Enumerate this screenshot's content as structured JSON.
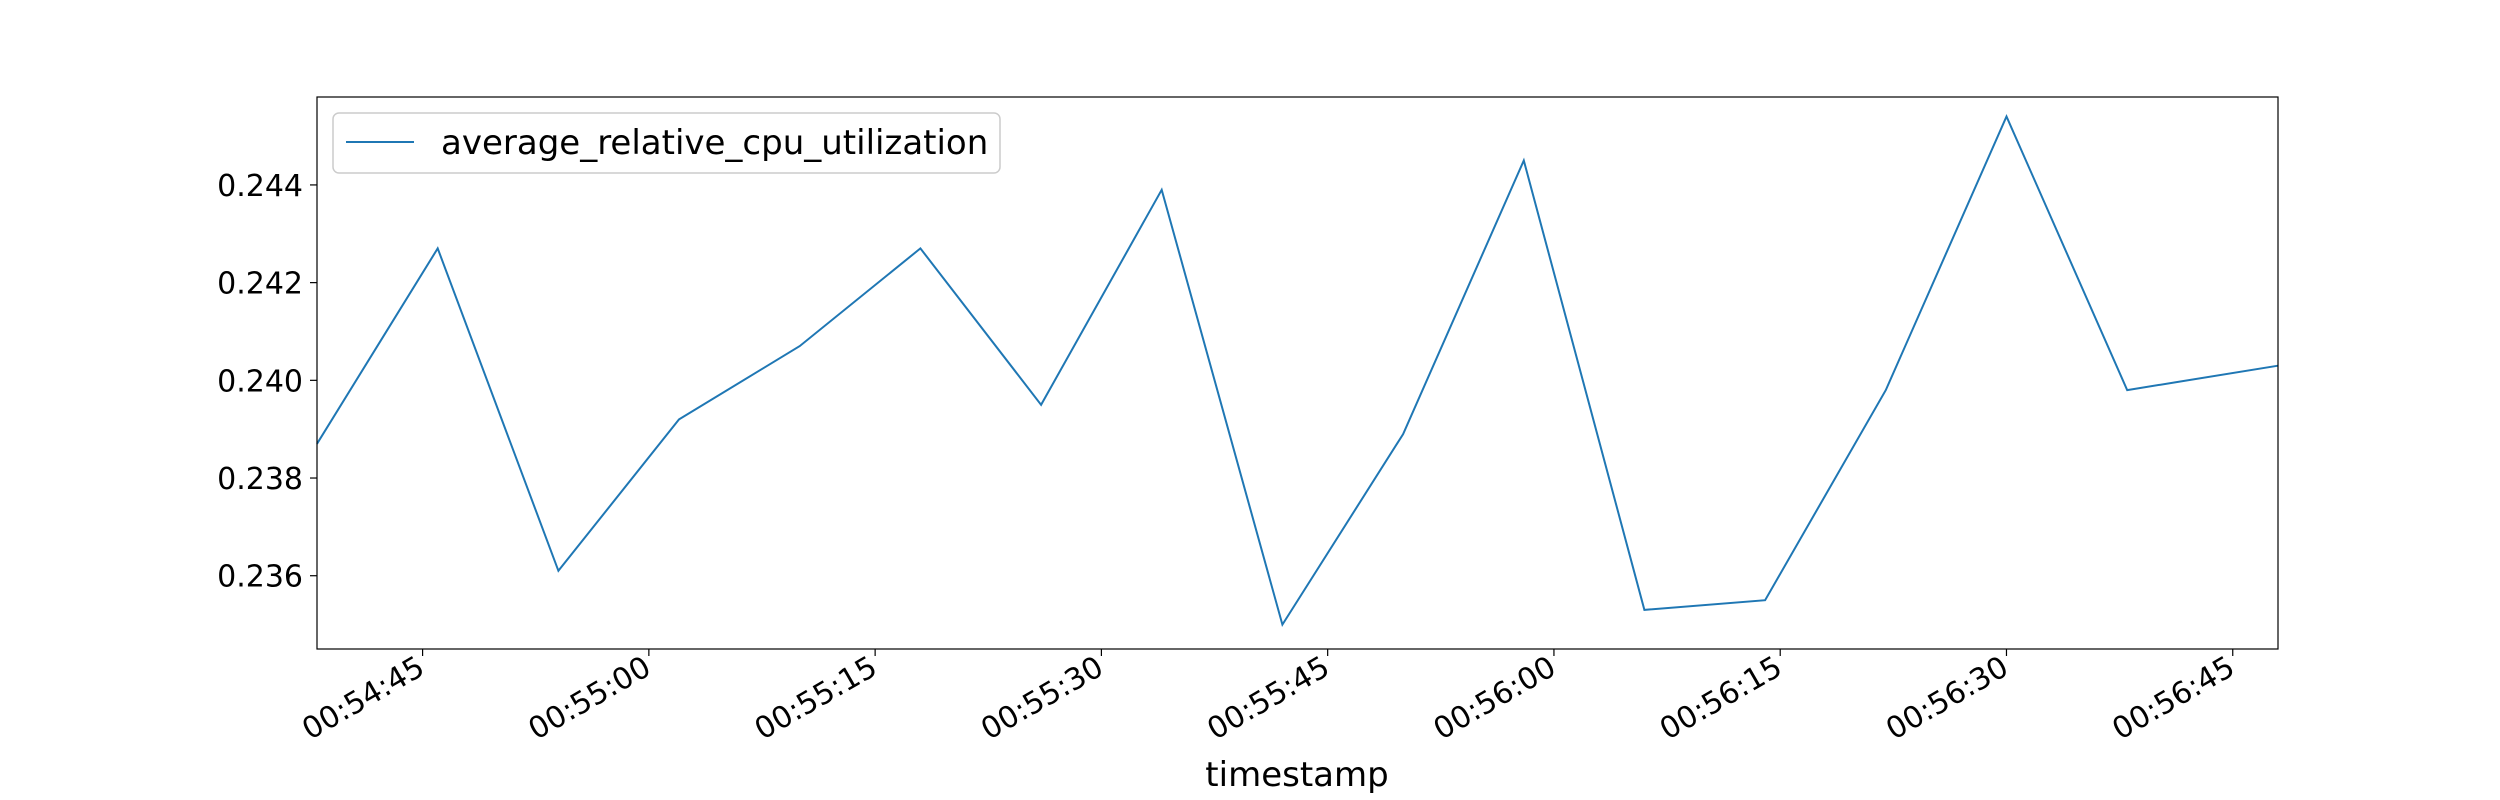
{
  "chart_data": {
    "type": "line",
    "title": "",
    "xlabel": "timestamp",
    "ylabel": "",
    "legend_position": "top-left",
    "grid": false,
    "line_color": "#1f77b4",
    "xlim": [
      "00:54:38",
      "00:56:48"
    ],
    "ylim": [
      0.2345,
      0.2458
    ],
    "x_ticks": [
      "00:54:45",
      "00:55:00",
      "00:55:15",
      "00:55:30",
      "00:55:45",
      "00:56:00",
      "00:56:15",
      "00:56:30",
      "00:56:45"
    ],
    "y_ticks": [
      "0.236",
      "0.238",
      "0.240",
      "0.242",
      "0.244"
    ],
    "series": [
      {
        "name": "average_relative_cpu_utilization",
        "x": [
          "00:54:38",
          "00:54:46",
          "00:54:54",
          "00:55:02",
          "00:55:10",
          "00:55:18",
          "00:55:26",
          "00:55:34",
          "00:55:42",
          "00:55:50",
          "00:55:58",
          "00:56:06",
          "00:56:14",
          "00:56:22",
          "00:56:30",
          "00:56:38",
          "00:56:48"
        ],
        "y": [
          0.2387,
          0.2427,
          0.2361,
          0.2392,
          0.2407,
          0.2427,
          0.2395,
          0.2439,
          0.235,
          0.2389,
          0.2445,
          0.2353,
          0.2355,
          0.2398,
          0.2454,
          0.2398,
          0.2403
        ]
      }
    ]
  }
}
